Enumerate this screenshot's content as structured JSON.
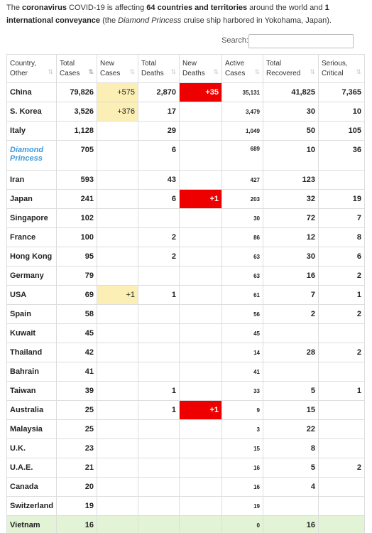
{
  "intro": {
    "t1": "The ",
    "b1": "coronavirus",
    "t2": " COVID-19 is affecting ",
    "b2": "64 countries and territories",
    "t3": " around the world and ",
    "b3": "1 international conveyance",
    "t4": " (the ",
    "i1": "Diamond Princess",
    "t5": " cruise ship harbored in Yokohama, Japan)."
  },
  "search": {
    "label": "Search:",
    "value": "",
    "placeholder": ""
  },
  "table": {
    "headers": [
      {
        "key": "country",
        "label": "Country, Other"
      },
      {
        "key": "total_cases",
        "label": "Total Cases"
      },
      {
        "key": "new_cases",
        "label": "New Cases"
      },
      {
        "key": "total_deaths",
        "label": "Total Deaths"
      },
      {
        "key": "new_deaths",
        "label": "New Deaths"
      },
      {
        "key": "active_cases",
        "label": "Active Cases"
      },
      {
        "key": "total_recovered",
        "label": "Total Recovered"
      },
      {
        "key": "serious_critical",
        "label": "Serious, Critical"
      }
    ],
    "sorted_column": "total_cases",
    "rows": [
      {
        "country": "China",
        "total_cases": "79,826",
        "new_cases": "+575",
        "total_deaths": "2,870",
        "new_deaths": "+35",
        "active_cases": "35,131",
        "total_recovered": "41,825",
        "serious_critical": "7,365"
      },
      {
        "country": "S. Korea",
        "total_cases": "3,526",
        "new_cases": "+376",
        "total_deaths": "17",
        "new_deaths": "",
        "active_cases": "3,479",
        "total_recovered": "30",
        "serious_critical": "10"
      },
      {
        "country": "Italy",
        "total_cases": "1,128",
        "new_cases": "",
        "total_deaths": "29",
        "new_deaths": "",
        "active_cases": "1,049",
        "total_recovered": "50",
        "serious_critical": "105"
      },
      {
        "country": "Diamond Princess",
        "total_cases": "705",
        "new_cases": "",
        "total_deaths": "6",
        "new_deaths": "",
        "active_cases": "689",
        "total_recovered": "10",
        "serious_critical": "36"
      },
      {
        "country": "Iran",
        "total_cases": "593",
        "new_cases": "",
        "total_deaths": "43",
        "new_deaths": "",
        "active_cases": "427",
        "total_recovered": "123",
        "serious_critical": ""
      },
      {
        "country": "Japan",
        "total_cases": "241",
        "new_cases": "",
        "total_deaths": "6",
        "new_deaths": "+1",
        "active_cases": "203",
        "total_recovered": "32",
        "serious_critical": "19"
      },
      {
        "country": "Singapore",
        "total_cases": "102",
        "new_cases": "",
        "total_deaths": "",
        "new_deaths": "",
        "active_cases": "30",
        "total_recovered": "72",
        "serious_critical": "7"
      },
      {
        "country": "France",
        "total_cases": "100",
        "new_cases": "",
        "total_deaths": "2",
        "new_deaths": "",
        "active_cases": "86",
        "total_recovered": "12",
        "serious_critical": "8"
      },
      {
        "country": "Hong Kong",
        "total_cases": "95",
        "new_cases": "",
        "total_deaths": "2",
        "new_deaths": "",
        "active_cases": "63",
        "total_recovered": "30",
        "serious_critical": "6"
      },
      {
        "country": "Germany",
        "total_cases": "79",
        "new_cases": "",
        "total_deaths": "",
        "new_deaths": "",
        "active_cases": "63",
        "total_recovered": "16",
        "serious_critical": "2"
      },
      {
        "country": "USA",
        "total_cases": "69",
        "new_cases": "+1",
        "total_deaths": "1",
        "new_deaths": "",
        "active_cases": "61",
        "total_recovered": "7",
        "serious_critical": "1"
      },
      {
        "country": "Spain",
        "total_cases": "58",
        "new_cases": "",
        "total_deaths": "",
        "new_deaths": "",
        "active_cases": "56",
        "total_recovered": "2",
        "serious_critical": "2"
      },
      {
        "country": "Kuwait",
        "total_cases": "45",
        "new_cases": "",
        "total_deaths": "",
        "new_deaths": "",
        "active_cases": "45",
        "total_recovered": "",
        "serious_critical": ""
      },
      {
        "country": "Thailand",
        "total_cases": "42",
        "new_cases": "",
        "total_deaths": "",
        "new_deaths": "",
        "active_cases": "14",
        "total_recovered": "28",
        "serious_critical": "2"
      },
      {
        "country": "Bahrain",
        "total_cases": "41",
        "new_cases": "",
        "total_deaths": "",
        "new_deaths": "",
        "active_cases": "41",
        "total_recovered": "",
        "serious_critical": ""
      },
      {
        "country": "Taiwan",
        "total_cases": "39",
        "new_cases": "",
        "total_deaths": "1",
        "new_deaths": "",
        "active_cases": "33",
        "total_recovered": "5",
        "serious_critical": "1"
      },
      {
        "country": "Australia",
        "total_cases": "25",
        "new_cases": "",
        "total_deaths": "1",
        "new_deaths": "+1",
        "active_cases": "9",
        "total_recovered": "15",
        "serious_critical": ""
      },
      {
        "country": "Malaysia",
        "total_cases": "25",
        "new_cases": "",
        "total_deaths": "",
        "new_deaths": "",
        "active_cases": "3",
        "total_recovered": "22",
        "serious_critical": ""
      },
      {
        "country": "U.K.",
        "total_cases": "23",
        "new_cases": "",
        "total_deaths": "",
        "new_deaths": "",
        "active_cases": "15",
        "total_recovered": "8",
        "serious_critical": ""
      },
      {
        "country": "U.A.E.",
        "total_cases": "21",
        "new_cases": "",
        "total_deaths": "",
        "new_deaths": "",
        "active_cases": "16",
        "total_recovered": "5",
        "serious_critical": "2"
      },
      {
        "country": "Canada",
        "total_cases": "20",
        "new_cases": "",
        "total_deaths": "",
        "new_deaths": "",
        "active_cases": "16",
        "total_recovered": "4",
        "serious_critical": ""
      },
      {
        "country": "Switzerland",
        "total_cases": "19",
        "new_cases": "",
        "total_deaths": "",
        "new_deaths": "",
        "active_cases": "19",
        "total_recovered": "",
        "serious_critical": ""
      },
      {
        "country": "Vietnam",
        "total_cases": "16",
        "new_cases": "",
        "total_deaths": "",
        "new_deaths": "",
        "active_cases": "0",
        "total_recovered": "16",
        "serious_critical": ""
      }
    ]
  },
  "colors": {
    "new_cases_highlight": "#fcefb6",
    "new_deaths_highlight": "#ee0000",
    "fully_recovered_row": "#e2f4d5",
    "ship_link": "#3b9ae0"
  },
  "icons": {
    "sort": "sort-arrows-icon"
  }
}
